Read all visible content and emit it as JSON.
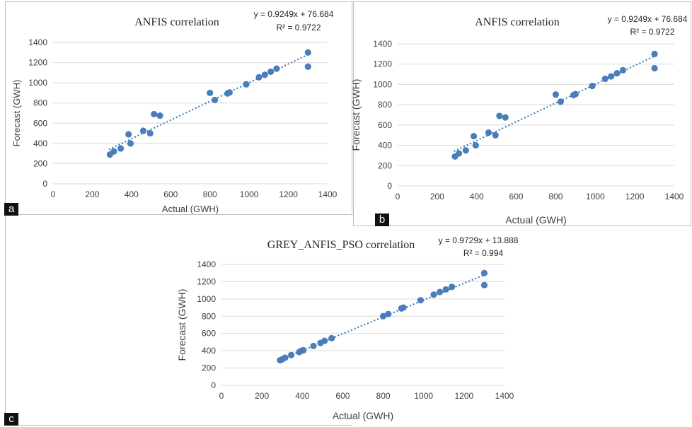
{
  "panel_labels": {
    "a": "a",
    "b": "b",
    "c": "c"
  },
  "colors": {
    "marker": "#4a7ebb",
    "trendline": "#2e75b6",
    "grid": "#d9d9d9",
    "text": "#404040"
  },
  "chart_data": [
    {
      "id": "a",
      "type": "scatter",
      "title": "ANFIS correlation",
      "equation": "y = 0.9249x + 76.684",
      "r_squared": "R² = 0.9722",
      "xlabel": "Actual (GWH)",
      "ylabel": "Forecast (GWH)",
      "xlim": [
        0,
        1400
      ],
      "ylim": [
        0,
        1400
      ],
      "xticks": [
        "0",
        "200",
        "400",
        "600",
        "800",
        "1000",
        "1200",
        "1400"
      ],
      "yticks": [
        "0",
        "200",
        "400",
        "600",
        "800",
        "1000",
        "1200",
        "1400"
      ],
      "grid": "horizontal",
      "trendline": {
        "slope": 0.9249,
        "intercept": 76.684,
        "x_range": [
          285,
          1305
        ]
      },
      "points": [
        [
          290,
          290
        ],
        [
          310,
          320
        ],
        [
          345,
          350
        ],
        [
          385,
          490
        ],
        [
          395,
          400
        ],
        [
          460,
          525
        ],
        [
          495,
          500
        ],
        [
          515,
          690
        ],
        [
          545,
          675
        ],
        [
          800,
          900
        ],
        [
          825,
          830
        ],
        [
          890,
          895
        ],
        [
          900,
          905
        ],
        [
          985,
          985
        ],
        [
          1050,
          1055
        ],
        [
          1080,
          1080
        ],
        [
          1110,
          1110
        ],
        [
          1140,
          1140
        ],
        [
          1300,
          1300
        ],
        [
          1300,
          1160
        ]
      ]
    },
    {
      "id": "b",
      "type": "scatter",
      "title": "ANFIS correlation",
      "equation": "y = 0.9249x + 76.684",
      "r_squared": "R² = 0.9722",
      "xlabel": "Actual (GWH)",
      "ylabel": "Forecast (GWH)",
      "xlim": [
        0,
        1400
      ],
      "ylim": [
        0,
        1400
      ],
      "xticks": [
        "0",
        "200",
        "400",
        "600",
        "800",
        "1000",
        "1200",
        "1400"
      ],
      "yticks": [
        "0",
        "200",
        "400",
        "600",
        "800",
        "1000",
        "1200",
        "1400"
      ],
      "grid": "horizontal",
      "trendline": {
        "slope": 0.9249,
        "intercept": 76.684,
        "x_range": [
          285,
          1305
        ]
      },
      "points": [
        [
          290,
          290
        ],
        [
          310,
          320
        ],
        [
          345,
          350
        ],
        [
          385,
          490
        ],
        [
          395,
          400
        ],
        [
          460,
          525
        ],
        [
          495,
          500
        ],
        [
          515,
          690
        ],
        [
          545,
          675
        ],
        [
          800,
          900
        ],
        [
          825,
          830
        ],
        [
          890,
          895
        ],
        [
          900,
          905
        ],
        [
          985,
          985
        ],
        [
          1050,
          1055
        ],
        [
          1080,
          1080
        ],
        [
          1110,
          1110
        ],
        [
          1140,
          1140
        ],
        [
          1300,
          1300
        ],
        [
          1300,
          1160
        ]
      ]
    },
    {
      "id": "c",
      "type": "scatter",
      "title": "GREY_ANFIS_PSO correlation",
      "equation": "y = 0.9729x + 13.888",
      "r_squared": "R² = 0.994",
      "xlabel": "Actual (GWH)",
      "ylabel": "Forecast (GWH)",
      "xlim": [
        0,
        1400
      ],
      "ylim": [
        0,
        1400
      ],
      "xticks": [
        "0",
        "200",
        "400",
        "600",
        "800",
        "1000",
        "1200",
        "1400"
      ],
      "yticks": [
        "0",
        "200",
        "400",
        "600",
        "800",
        "1000",
        "1200",
        "1400"
      ],
      "grid": "horizontal",
      "trendline": {
        "slope": 0.9729,
        "intercept": 13.888,
        "x_range": [
          285,
          1305
        ]
      },
      "points": [
        [
          290,
          290
        ],
        [
          300,
          300
        ],
        [
          315,
          320
        ],
        [
          345,
          350
        ],
        [
          385,
          385
        ],
        [
          395,
          400
        ],
        [
          405,
          405
        ],
        [
          455,
          455
        ],
        [
          490,
          490
        ],
        [
          510,
          515
        ],
        [
          545,
          545
        ],
        [
          800,
          800
        ],
        [
          825,
          825
        ],
        [
          890,
          890
        ],
        [
          900,
          900
        ],
        [
          985,
          985
        ],
        [
          1050,
          1050
        ],
        [
          1080,
          1080
        ],
        [
          1110,
          1110
        ],
        [
          1140,
          1140
        ],
        [
          1300,
          1300
        ],
        [
          1300,
          1160
        ]
      ]
    }
  ]
}
